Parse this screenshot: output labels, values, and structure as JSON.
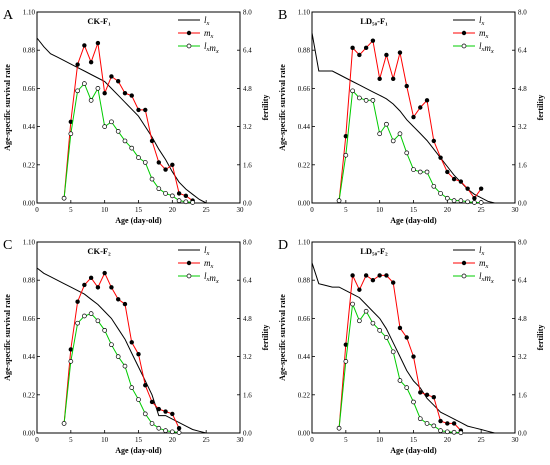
{
  "colors": {
    "lx": "#000000",
    "mx": "#ff0000",
    "lxmx": "#00cc00",
    "marker": "#000000"
  },
  "panels_text": [
    {
      "letter": "A",
      "title": "CK-F₁"
    },
    {
      "letter": "B",
      "title": "LD₅₀-F₁"
    },
    {
      "letter": "C",
      "title": "CK-F₂"
    },
    {
      "letter": "D",
      "title": "LD₅₀-F₂"
    }
  ],
  "chart_data": [
    {
      "type": "line",
      "panel": "A",
      "title": "CK-F₁",
      "xlabel": "Age  (day-old)",
      "ylabel": "Age-specific survival rate",
      "y2label": "fertility",
      "xlim": [
        0,
        30
      ],
      "ylim": [
        0,
        1.1
      ],
      "y2lim": [
        0,
        8
      ],
      "xticks": [
        0,
        5,
        10,
        15,
        20,
        25,
        30
      ],
      "yticks": [
        "0.00",
        "0.22",
        "0.44",
        "0.66",
        "0.88",
        "1.10"
      ],
      "y2ticks": [
        "0.0",
        "1.6",
        "3.2",
        "4.8",
        "6.4",
        "8.0"
      ],
      "legend_position": "top-right",
      "series": [
        {
          "name": "lx",
          "axis": "left",
          "marker": "none",
          "x": [
            0,
            1,
            2,
            3,
            4,
            5,
            6,
            7,
            8,
            9,
            10,
            11,
            12,
            13,
            14,
            15,
            16,
            17,
            18,
            19,
            20,
            21,
            22,
            23,
            24,
            25
          ],
          "y": [
            0.95,
            0.9,
            0.86,
            0.84,
            0.82,
            0.8,
            0.78,
            0.76,
            0.74,
            0.72,
            0.7,
            0.66,
            0.62,
            0.58,
            0.54,
            0.5,
            0.44,
            0.38,
            0.31,
            0.25,
            0.18,
            0.12,
            0.08,
            0.05,
            0.02,
            0.0
          ]
        },
        {
          "name": "mx",
          "axis": "right",
          "marker": "filled",
          "x": [
            4,
            5,
            6,
            7,
            8,
            9,
            10,
            11,
            12,
            13,
            14,
            15,
            16,
            17,
            18,
            19,
            20,
            21,
            22,
            23
          ],
          "y": [
            0.2,
            3.4,
            5.8,
            6.6,
            5.9,
            6.7,
            4.6,
            5.3,
            5.1,
            4.6,
            4.5,
            3.9,
            3.9,
            2.6,
            1.7,
            1.4,
            1.6,
            0.4,
            0.3,
            0.1
          ]
        },
        {
          "name": "lxmx",
          "axis": "right",
          "marker": "open",
          "x": [
            4,
            5,
            6,
            7,
            8,
            9,
            10,
            11,
            12,
            13,
            14,
            15,
            16,
            17,
            18,
            19,
            20,
            21,
            22,
            23
          ],
          "y": [
            0.2,
            2.9,
            4.7,
            5.0,
            4.3,
            4.8,
            3.2,
            3.4,
            3.0,
            2.6,
            2.3,
            1.9,
            1.7,
            1.0,
            0.6,
            0.4,
            0.3,
            0.1,
            0.05,
            0.02
          ]
        }
      ]
    },
    {
      "type": "line",
      "panel": "B",
      "title": "LD₅₀-F₁",
      "xlabel": "Age  (day-old)",
      "ylabel": "Age-specific survival rate",
      "y2label": "fertility",
      "xlim": [
        0,
        30
      ],
      "ylim": [
        0,
        1.1
      ],
      "y2lim": [
        0,
        8
      ],
      "xticks": [
        0,
        5,
        10,
        15,
        20,
        25,
        30
      ],
      "yticks": [
        "0.00",
        "0.22",
        "0.44",
        "0.66",
        "0.88",
        "1.10"
      ],
      "y2ticks": [
        "0.0",
        "1.6",
        "3.2",
        "4.8",
        "6.4",
        "8.0"
      ],
      "legend_position": "top-right",
      "series": [
        {
          "name": "lx",
          "axis": "left",
          "marker": "none",
          "x": [
            0,
            1,
            2,
            3,
            4,
            5,
            6,
            7,
            8,
            9,
            10,
            11,
            12,
            13,
            14,
            15,
            16,
            17,
            18,
            19,
            20,
            21,
            22,
            23,
            24,
            25,
            26,
            27
          ],
          "y": [
            0.98,
            0.76,
            0.76,
            0.76,
            0.74,
            0.72,
            0.7,
            0.68,
            0.66,
            0.64,
            0.62,
            0.6,
            0.57,
            0.53,
            0.48,
            0.44,
            0.4,
            0.36,
            0.31,
            0.26,
            0.21,
            0.16,
            0.12,
            0.08,
            0.05,
            0.03,
            0.01,
            0.0
          ]
        },
        {
          "name": "mx",
          "axis": "right",
          "marker": "filled",
          "x": [
            4,
            5,
            6,
            7,
            8,
            9,
            10,
            11,
            12,
            13,
            14,
            15,
            16,
            17,
            18,
            19,
            20,
            21,
            22,
            23,
            24,
            25
          ],
          "y": [
            0.1,
            2.8,
            6.5,
            6.2,
            6.5,
            6.8,
            5.2,
            6.2,
            5.2,
            6.3,
            4.9,
            3.6,
            4.0,
            4.3,
            2.6,
            1.9,
            1.3,
            1.0,
            0.9,
            0.6,
            0.2,
            0.6
          ]
        },
        {
          "name": "lxmx",
          "axis": "right",
          "marker": "open",
          "x": [
            4,
            5,
            6,
            7,
            8,
            9,
            10,
            11,
            12,
            13,
            14,
            15,
            16,
            17,
            18,
            19,
            20,
            21,
            22,
            23,
            24,
            25
          ],
          "y": [
            0.1,
            2.0,
            4.7,
            4.4,
            4.3,
            4.3,
            2.9,
            3.3,
            2.6,
            2.9,
            2.1,
            1.4,
            1.3,
            1.3,
            0.7,
            0.4,
            0.2,
            0.1,
            0.1,
            0.05,
            0.02,
            0.02
          ]
        }
      ]
    },
    {
      "type": "line",
      "panel": "C",
      "title": "CK-F₂",
      "xlabel": "Age  (day-old)",
      "ylabel": "Age-specific survival rate",
      "y2label": "fertility",
      "xlim": [
        0,
        30
      ],
      "ylim": [
        0,
        1.1
      ],
      "y2lim": [
        0,
        8
      ],
      "xticks": [
        0,
        5,
        10,
        15,
        20,
        25,
        30
      ],
      "yticks": [
        "0.00",
        "0.22",
        "0.44",
        "0.66",
        "0.88",
        "1.10"
      ],
      "y2ticks": [
        "0.0",
        "1.6",
        "3.2",
        "4.8",
        "6.4",
        "8.0"
      ],
      "legend_position": "top-right",
      "series": [
        {
          "name": "lx",
          "axis": "left",
          "marker": "none",
          "x": [
            0,
            1,
            2,
            3,
            4,
            5,
            6,
            7,
            8,
            9,
            10,
            11,
            12,
            13,
            14,
            15,
            16,
            17,
            18,
            19,
            20,
            21,
            22,
            23,
            24,
            25
          ],
          "y": [
            0.95,
            0.92,
            0.9,
            0.88,
            0.86,
            0.84,
            0.82,
            0.8,
            0.77,
            0.74,
            0.7,
            0.66,
            0.6,
            0.54,
            0.46,
            0.38,
            0.3,
            0.22,
            0.1,
            0.1,
            0.08,
            0.06,
            0.04,
            0.02,
            0.01,
            0.0
          ]
        },
        {
          "name": "mx",
          "axis": "right",
          "marker": "filled",
          "x": [
            4,
            5,
            6,
            7,
            8,
            9,
            10,
            11,
            12,
            13,
            14,
            15,
            16,
            17,
            18,
            19,
            20,
            21
          ],
          "y": [
            0.4,
            3.5,
            5.5,
            6.2,
            6.5,
            6.1,
            6.7,
            6.1,
            5.6,
            5.4,
            3.8,
            3.3,
            2.0,
            1.3,
            1.0,
            0.9,
            0.8,
            0.2
          ]
        },
        {
          "name": "lxmx",
          "axis": "right",
          "marker": "open",
          "x": [
            4,
            5,
            6,
            7,
            8,
            9,
            10,
            11,
            12,
            13,
            14,
            15,
            16,
            17,
            18,
            19,
            20,
            21
          ],
          "y": [
            0.4,
            3.0,
            4.6,
            4.9,
            5.0,
            4.7,
            4.3,
            3.7,
            3.2,
            2.8,
            1.9,
            1.4,
            0.8,
            0.4,
            0.2,
            0.1,
            0.05,
            0.02
          ]
        }
      ]
    },
    {
      "type": "line",
      "panel": "D",
      "title": "LD₅₀-F₂",
      "xlabel": "Age  (day-old)",
      "ylabel": "Age-specific survival rate",
      "y2label": "fertility",
      "xlim": [
        0,
        30
      ],
      "ylim": [
        0,
        1.1
      ],
      "y2lim": [
        0,
        8
      ],
      "xticks": [
        0,
        5,
        10,
        15,
        20,
        25,
        30
      ],
      "yticks": [
        "0.00",
        "0.22",
        "0.44",
        "0.66",
        "0.88",
        "1.10"
      ],
      "y2ticks": [
        "0.0",
        "1.6",
        "3.2",
        "4.8",
        "6.4",
        "8.0"
      ],
      "legend_position": "top-right",
      "series": [
        {
          "name": "lx",
          "axis": "left",
          "marker": "none",
          "x": [
            0,
            1,
            2,
            3,
            4,
            5,
            6,
            7,
            8,
            9,
            10,
            11,
            12,
            13,
            14,
            15,
            16,
            17,
            18,
            19,
            20,
            21,
            22,
            23,
            24,
            25,
            26,
            27
          ],
          "y": [
            0.98,
            0.86,
            0.85,
            0.84,
            0.84,
            0.82,
            0.8,
            0.78,
            0.74,
            0.7,
            0.66,
            0.6,
            0.52,
            0.44,
            0.36,
            0.3,
            0.26,
            0.2,
            0.16,
            0.12,
            0.1,
            0.08,
            0.06,
            0.04,
            0.03,
            0.02,
            0.01,
            0.0
          ]
        },
        {
          "name": "mx",
          "axis": "right",
          "marker": "filled",
          "x": [
            4,
            5,
            6,
            7,
            8,
            9,
            10,
            11,
            12,
            13,
            14,
            15,
            16,
            17,
            18,
            19,
            20,
            21,
            22
          ],
          "y": [
            0.2,
            3.7,
            6.6,
            6.0,
            6.6,
            6.4,
            6.6,
            6.6,
            6.3,
            4.4,
            4.0,
            3.2,
            1.7,
            1.6,
            1.5,
            0.5,
            0.4,
            0.4,
            0.1
          ]
        },
        {
          "name": "lxmx",
          "axis": "right",
          "marker": "open",
          "x": [
            4,
            5,
            6,
            7,
            8,
            9,
            10,
            11,
            12,
            13,
            14,
            15,
            16,
            17,
            18,
            19,
            20,
            21,
            22
          ],
          "y": [
            0.2,
            3.0,
            5.4,
            4.7,
            5.1,
            4.6,
            4.3,
            4.0,
            3.4,
            2.2,
            1.9,
            1.3,
            0.6,
            0.4,
            0.3,
            0.1,
            0.05,
            0.03,
            0.01
          ]
        }
      ]
    }
  ]
}
